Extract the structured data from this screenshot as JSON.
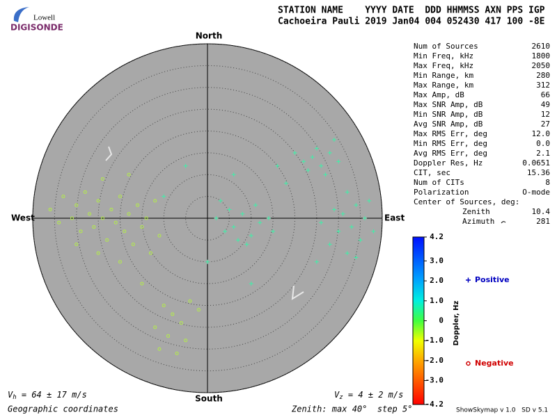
{
  "header": {
    "logo_top": "Lowell",
    "logo_bottom": "DIGISONDE",
    "line1": "STATION NAME    YYYY DATE  DDD HHMMSS AXN PPS IGP",
    "line2": "Cachoeira Pauli 2019 Jan04 004 052430 417 100 -8E"
  },
  "stats": [
    [
      "Num of Sources",
      "2610"
    ],
    [
      "Min Freq, kHz",
      "1800"
    ],
    [
      "Max Freq, kHz",
      "2050"
    ],
    [
      "Min Range, km",
      "280"
    ],
    [
      "Max Range, km",
      "312"
    ],
    [
      "Max Amp, dB",
      "66"
    ],
    [
      "Max SNR Amp, dB",
      "49"
    ],
    [
      "Min SNR Amp, dB",
      "12"
    ],
    [
      "Avg SNR Amp, dB",
      "27"
    ],
    [
      "Max RMS Err, deg",
      "12.0"
    ],
    [
      "Min RMS Err, deg",
      "0.0"
    ],
    [
      "Avg RMS Err, deg",
      "2.1"
    ],
    [
      "Doppler Res, Hz",
      "0.0651"
    ],
    [
      "CIT, sec",
      "15.36"
    ],
    [
      "Num of CITs",
      "8"
    ],
    [
      "Polarization",
      "O-mode"
    ]
  ],
  "center": {
    "title": "Center of Sources, deg:",
    "zenith_label": "Zenith",
    "zenith": "10.4",
    "azimuth_label": "Azimuth",
    "azimuth": "281"
  },
  "chart_data": {
    "type": "scatter",
    "directions": {
      "north": "North",
      "south": "South",
      "west": "West",
      "east": "East"
    },
    "xlim": [
      -40,
      40
    ],
    "ylim": [
      -40,
      40
    ],
    "rings": [
      5,
      10,
      15,
      20,
      25,
      30,
      35,
      40
    ],
    "series": [
      {
        "name": "Positive",
        "marker": "+",
        "color": "#3ef0a8",
        "legend_color": "#0000c0",
        "x": [
          22,
          24,
          26,
          25,
          28,
          23,
          27,
          30,
          20,
          29,
          32,
          34,
          36,
          33,
          35,
          31,
          30,
          37,
          28,
          32,
          26,
          29,
          34,
          25,
          38,
          2,
          4,
          6,
          8,
          10,
          12,
          5,
          9,
          14,
          7,
          3,
          11,
          15,
          18,
          16,
          0,
          10,
          -5,
          -10,
          6
        ],
        "y": [
          13,
          14,
          12,
          16,
          15,
          11,
          10,
          13,
          15,
          18,
          6,
          3,
          0,
          -2,
          -5,
          1,
          -3,
          4,
          -6,
          -8,
          -1,
          2,
          -9,
          -10,
          -3,
          0,
          -3,
          -2,
          1,
          -4,
          -1,
          2,
          -6,
          0,
          -5,
          4,
          3,
          -3,
          8,
          12,
          -10,
          -15,
          12,
          5,
          10
        ]
      },
      {
        "name": "Negative",
        "marker": "o",
        "color": "#b4f046",
        "legend_color": "#d00000",
        "x": [
          -36,
          -34,
          -33,
          -31,
          -30,
          -29,
          -28,
          -27,
          -26,
          -25,
          -24,
          -23,
          -22,
          -21,
          -20,
          -19,
          -18,
          -17,
          -16,
          -15,
          -14,
          -13,
          -12,
          -11,
          -20,
          -25,
          -30,
          -18,
          -24,
          -10,
          -8,
          -6,
          -9,
          -5,
          -11,
          -4,
          -7,
          -2,
          -12,
          -15
        ],
        "y": [
          2,
          -1,
          5,
          0,
          3,
          -3,
          6,
          1,
          -2,
          4,
          0,
          -5,
          2,
          -1,
          5,
          -3,
          1,
          -6,
          3,
          -2,
          0,
          -8,
          4,
          -4,
          -10,
          -8,
          -6,
          10,
          9,
          -20,
          -22,
          -24,
          -27,
          -28,
          -30,
          -19,
          -31,
          -21,
          -25,
          -15
        ]
      }
    ],
    "colorbar": {
      "label": "Doppler, Hz",
      "lim": [
        -4.2,
        4.2
      ],
      "ticks": [
        4.2,
        {
          "value": 3,
          "label": "3.0"
        },
        {
          "value": 2,
          "label": "2.0"
        },
        {
          "value": 1,
          "label": "1.0"
        },
        0,
        {
          "value": -1,
          "label": "-1.0"
        },
        {
          "value": -2,
          "label": "-2.0"
        },
        {
          "value": -3,
          "label": "-3.0"
        },
        -4.2
      ]
    }
  },
  "footer": {
    "vh_symbol": "V",
    "vh_sub": "h",
    "vh_text": " = 64 ± 17 m/s",
    "vz_symbol": "V",
    "vz_sub": "z",
    "vz_text": " = 4 ± 2 m/s",
    "coords": "Geographic coordinates",
    "zenith": "Zenith: max 40°  step 5°",
    "version": "ShowSkymap v 1.0   SD v 5.1"
  }
}
